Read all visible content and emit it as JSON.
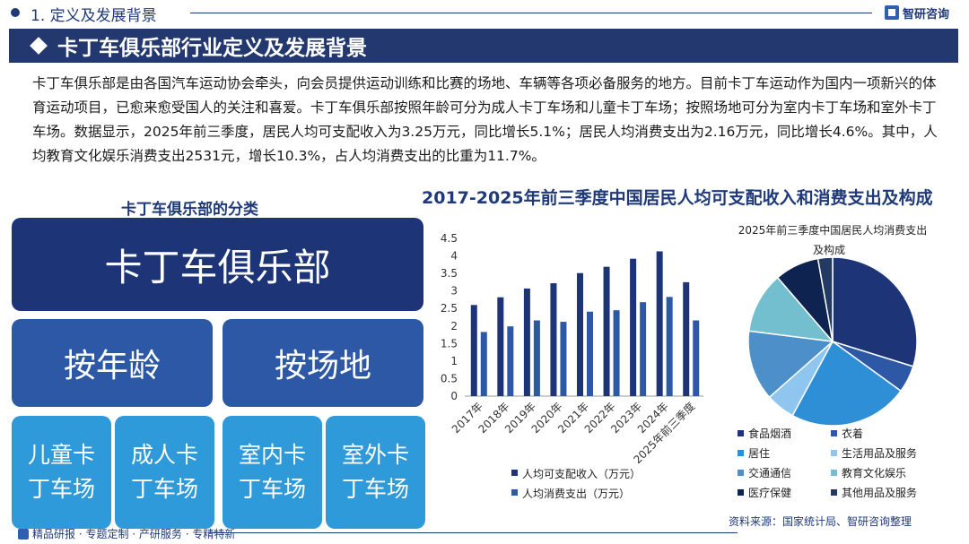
{
  "header": {
    "section": "1. 定义及发展背景",
    "brand": "智研咨询"
  },
  "banner": {
    "title": "卡丁车俱乐部行业定义及发展背景"
  },
  "intro": "卡丁车俱乐部是由各国汽车运动协会牵头，向会员提供运动训练和比赛的场地、车辆等各项必备服务的地方。目前卡丁车运动作为国内一项新兴的体育运动项目，已愈来愈受国人的关注和喜爱。卡丁车俱乐部按照年龄可分为成人卡丁车场和儿童卡丁车场；按照场地可分为室内卡丁车场和室外卡丁车场。数据显示，2025年前三季度，居民人均可支配收入为3.25万元，同比增长5.1%；居民人均消费支出为2.16万元，同比增长4.6%。其中，人均教育文化娱乐消费支出2531元，增长10.3%，占人均消费支出的比重为11.7%。",
  "classification": {
    "title": "卡丁车俱乐部的分类",
    "root": "卡丁车俱乐部",
    "by_age": "按年龄",
    "by_site": "按场地",
    "children": [
      {
        "l1": "儿童卡",
        "l2": "丁车场"
      },
      {
        "l1": "成人卡",
        "l2": "丁车场"
      },
      {
        "l1": "室内卡",
        "l2": "丁车场"
      },
      {
        "l1": "室外卡",
        "l2": "丁车场"
      }
    ]
  },
  "chart_title": "2017-2025年前三季度中国居民人均可支配收入和消费支出及构成",
  "chart_data": [
    {
      "type": "bar",
      "categories": [
        "2017年",
        "2018年",
        "2019年",
        "2020年",
        "2021年",
        "2022年",
        "2023年",
        "2024年",
        "2025年前三季度"
      ],
      "series": [
        {
          "name": "人均可支配收入（万元）",
          "values": [
            2.6,
            2.82,
            3.07,
            3.22,
            3.51,
            3.69,
            3.92,
            4.13,
            3.25
          ],
          "color": "#1d3577"
        },
        {
          "name": "人均消费支出（万元）",
          "values": [
            1.83,
            1.99,
            2.16,
            2.12,
            2.41,
            2.45,
            2.68,
            2.83,
            2.16
          ],
          "color": "#2c58a6"
        }
      ],
      "ylim": [
        0,
        4.5
      ],
      "yticks": [
        "0",
        "0.5",
        "1",
        "1.5",
        "2",
        "2.5",
        "3",
        "3.5",
        "4",
        "4.5"
      ],
      "grid": false,
      "legend": "bottom"
    },
    {
      "type": "pie",
      "title": "2025年前三季度中国居民人均消费支出及构成",
      "title_lines": [
        "2025年前三季度中国居民人均消费支出",
        "及构成"
      ],
      "slices": [
        {
          "label": "食品烟酒",
          "value": 29.8,
          "color": "#1d3577"
        },
        {
          "label": "衣着",
          "value": 5.2,
          "color": "#2c58a6"
        },
        {
          "label": "居住",
          "value": 22.9,
          "color": "#2f8fd6"
        },
        {
          "label": "生活用品及服务",
          "value": 5.6,
          "color": "#8fc6ef"
        },
        {
          "label": "交通通信",
          "value": 13.5,
          "color": "#4d8fc9"
        },
        {
          "label": "教育文化娱乐",
          "value": 11.7,
          "color": "#73bfcf"
        },
        {
          "label": "医疗保健",
          "value": 8.5,
          "color": "#0f2350"
        },
        {
          "label": "其他用品及服务",
          "value": 2.8,
          "color": "#233a63"
        }
      ],
      "legend": "bottom"
    }
  ],
  "footer": {
    "items": "精品研报 · 专题定制 · 产研服务 · 专精特新",
    "source": "资料来源：国家统计局、智研咨询整理"
  }
}
